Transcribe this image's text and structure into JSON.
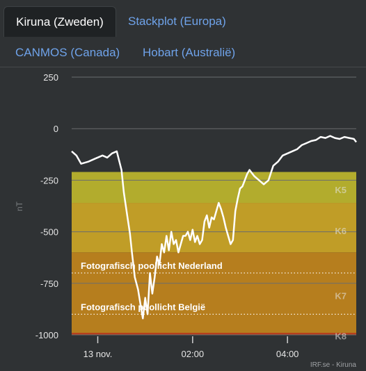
{
  "tabs": [
    {
      "label": "Kiruna (Zweden)",
      "active": true
    },
    {
      "label": "Stackplot (Europa)",
      "active": false
    },
    {
      "label": "CANMOS (Canada)",
      "active": false
    },
    {
      "label": "Hobart (Australië)",
      "active": false
    }
  ],
  "colors": {
    "background": "#2f3234",
    "active_tab": "#1f2224",
    "link": "#6fa3ea",
    "curve": "#ffffff",
    "k5": "#b2ac2d",
    "k6": "#c09d27",
    "k7": "#b67e1e",
    "k8": "#b8401c"
  },
  "chart_data": {
    "type": "line",
    "ylabel": "nT",
    "ylim": [
      -1000,
      250
    ],
    "y_ticks": [
      250,
      0,
      -250,
      -500,
      -750,
      -1000
    ],
    "x_ticks": [
      {
        "label": "13 nov.",
        "h": 0
      },
      {
        "label": "02:00",
        "h": 2
      },
      {
        "label": "04:00",
        "h": 4
      }
    ],
    "xlim": [
      -0.55,
      5.45
    ],
    "grid": true,
    "bands": [
      {
        "label": "K5",
        "from": -360,
        "to": -210,
        "color": "#b2ac2d"
      },
      {
        "label": "K6",
        "from": -600,
        "to": -360,
        "color": "#c09d27"
      },
      {
        "label": "K7",
        "from": -990,
        "to": -600,
        "color": "#b67e1e"
      },
      {
        "label": "K8",
        "from": -1000,
        "to": -990,
        "color": "#b8401c"
      }
    ],
    "band_label_values": {
      "K5": -295,
      "K6": -495,
      "K7": -810,
      "K8": -1005
    },
    "thresholds": [
      {
        "label": "Fotografisch poollicht Nederland",
        "value": -700
      },
      {
        "label": "Fotografisch poollicht België",
        "value": -900
      }
    ],
    "series": [
      {
        "x": [
          -0.55,
          -0.45,
          -0.35,
          -0.2,
          -0.05,
          0.1,
          0.2,
          0.3,
          0.4,
          0.5,
          0.55,
          0.62,
          0.68,
          0.72,
          0.78,
          0.85,
          0.9,
          0.95,
          1.0,
          1.05,
          1.1,
          1.15,
          1.2,
          1.25,
          1.3,
          1.35,
          1.4,
          1.45,
          1.5,
          1.55,
          1.6,
          1.65,
          1.7,
          1.75,
          1.8,
          1.85,
          1.9,
          1.95,
          2.0,
          2.05,
          2.1,
          2.15,
          2.2,
          2.25,
          2.3,
          2.35,
          2.4,
          2.45,
          2.5,
          2.55,
          2.6,
          2.65,
          2.7,
          2.75,
          2.8,
          2.85,
          2.9,
          2.95,
          3.0,
          3.05,
          3.1,
          3.15,
          3.2,
          3.3,
          3.4,
          3.5,
          3.6,
          3.7,
          3.8,
          3.9,
          4.0,
          4.1,
          4.2,
          4.3,
          4.4,
          4.5,
          4.6,
          4.7,
          4.8,
          4.9,
          5.0,
          5.1,
          5.2,
          5.3,
          5.4,
          5.45
        ],
        "y": [
          -110,
          -130,
          -170,
          -160,
          -145,
          -130,
          -140,
          -120,
          -110,
          -200,
          -310,
          -420,
          -510,
          -600,
          -720,
          -780,
          -850,
          -920,
          -820,
          -900,
          -700,
          -800,
          -720,
          -620,
          -660,
          -560,
          -600,
          -520,
          -590,
          -500,
          -560,
          -540,
          -600,
          -560,
          -520,
          -520,
          -500,
          -540,
          -490,
          -550,
          -520,
          -560,
          -540,
          -450,
          -420,
          -480,
          -430,
          -440,
          -400,
          -360,
          -390,
          -430,
          -480,
          -520,
          -560,
          -540,
          -400,
          -340,
          -290,
          -280,
          -250,
          -220,
          -200,
          -230,
          -250,
          -270,
          -250,
          -180,
          -160,
          -130,
          -120,
          -110,
          -100,
          -80,
          -70,
          -60,
          -55,
          -40,
          -45,
          -35,
          -45,
          -50,
          -40,
          -45,
          -50,
          -65
        ]
      }
    ],
    "annotation": "IRF.se - Kiruna"
  }
}
